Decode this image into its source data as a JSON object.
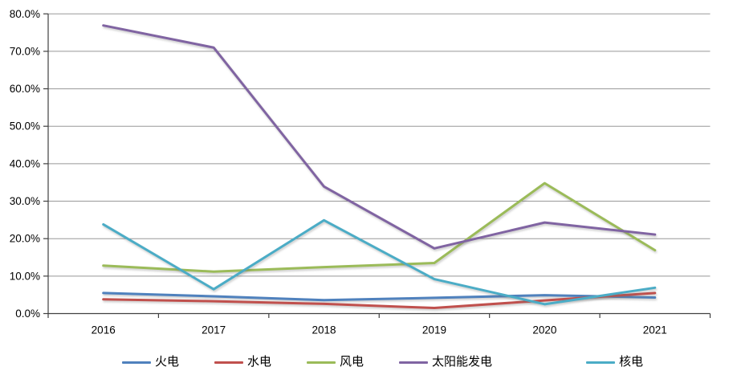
{
  "chart_data": {
    "type": "line",
    "title": "",
    "categories": [
      "2016",
      "2017",
      "2018",
      "2019",
      "2020",
      "2021"
    ],
    "series": [
      {
        "name": "火电",
        "color": "#4F81BD",
        "values": [
          5.5,
          4.6,
          3.6,
          4.2,
          4.9,
          4.3
        ]
      },
      {
        "name": "水电",
        "color": "#C0504D",
        "values": [
          3.8,
          3.3,
          2.6,
          1.5,
          3.5,
          5.5
        ]
      },
      {
        "name": "风电",
        "color": "#9BBB59",
        "values": [
          12.8,
          11.2,
          12.4,
          13.5,
          34.8,
          16.9
        ]
      },
      {
        "name": "太阳能发电",
        "color": "#8064A2",
        "values": [
          76.9,
          71.0,
          33.9,
          17.4,
          24.3,
          21.1
        ]
      },
      {
        "name": "核电",
        "color": "#4BACC6",
        "values": [
          23.8,
          6.5,
          24.9,
          9.2,
          2.5,
          6.9
        ]
      }
    ],
    "xlabel": "",
    "ylabel": "",
    "ylim": [
      0,
      80
    ],
    "ytick_step": 10,
    "ytick_labels": [
      "0.0%",
      "10.0%",
      "20.0%",
      "30.0%",
      "40.0%",
      "50.0%",
      "60.0%",
      "70.0%",
      "80.0%"
    ],
    "grid": "horizontal",
    "legend_position": "bottom",
    "legend_entries": [
      "火电",
      "水电",
      "风电",
      "太阳能发电",
      "核电"
    ]
  }
}
